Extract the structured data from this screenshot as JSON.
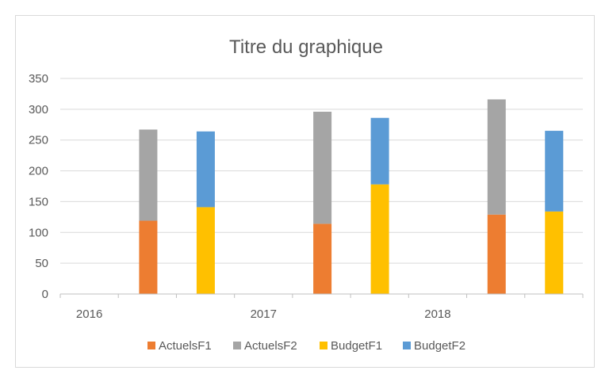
{
  "chart_data": {
    "type": "bar",
    "stacked": true,
    "title": "Titre du graphique",
    "xlabel": "",
    "ylabel": "",
    "ylim": [
      0,
      350
    ],
    "yticks": [
      0,
      50,
      100,
      150,
      200,
      250,
      300,
      350
    ],
    "grid": true,
    "legend_position": "bottom",
    "groups": [
      "2016",
      "2017",
      "2018"
    ],
    "stacks": [
      {
        "group": "2016",
        "stack": "Actuels",
        "series": [
          "ActuelsF1",
          "ActuelsF2"
        ],
        "values": [
          119,
          148
        ]
      },
      {
        "group": "2016",
        "stack": "Budget",
        "series": [
          "BudgetF1",
          "BudgetF2"
        ],
        "values": [
          141,
          123
        ]
      },
      {
        "group": "2017",
        "stack": "Actuels",
        "series": [
          "ActuelsF1",
          "ActuelsF2"
        ],
        "values": [
          114,
          182
        ]
      },
      {
        "group": "2017",
        "stack": "Budget",
        "series": [
          "BudgetF1",
          "BudgetF2"
        ],
        "values": [
          178,
          108
        ]
      },
      {
        "group": "2018",
        "stack": "Actuels",
        "series": [
          "ActuelsF1",
          "ActuelsF2"
        ],
        "values": [
          129,
          187
        ]
      },
      {
        "group": "2018",
        "stack": "Budget",
        "series": [
          "BudgetF1",
          "BudgetF2"
        ],
        "values": [
          134,
          131
        ]
      }
    ],
    "legend": [
      {
        "name": "ActuelsF1",
        "color": "#ED7D31"
      },
      {
        "name": "ActuelsF2",
        "color": "#A5A5A5"
      },
      {
        "name": "BudgetF1",
        "color": "#FFC000"
      },
      {
        "name": "BudgetF2",
        "color": "#5B9BD5"
      }
    ]
  }
}
